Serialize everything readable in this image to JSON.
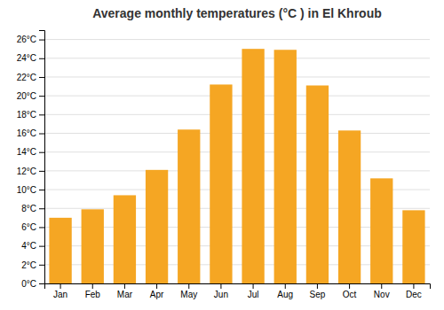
{
  "chart_data": {
    "type": "bar",
    "title": "Average monthly temperatures (°C ) in El Khroub",
    "categories": [
      "Jan",
      "Feb",
      "Mar",
      "Apr",
      "May",
      "Jun",
      "Jul",
      "Aug",
      "Sep",
      "Oct",
      "Nov",
      "Dec"
    ],
    "values": [
      7.0,
      7.9,
      9.4,
      12.1,
      16.4,
      21.2,
      25.0,
      24.9,
      21.1,
      16.3,
      11.2,
      7.8
    ],
    "color": "#F5A623",
    "ylim": [
      0,
      27
    ],
    "yticks": [
      {
        "value": 0,
        "label": "0°C"
      },
      {
        "value": 2,
        "label": "2°C"
      },
      {
        "value": 4,
        "label": "4°C"
      },
      {
        "value": 6,
        "label": "6°C"
      },
      {
        "value": 8,
        "label": "8°C"
      },
      {
        "value": 10,
        "label": "10°C"
      },
      {
        "value": 12,
        "label": "12°C"
      },
      {
        "value": 14,
        "label": "14°C"
      },
      {
        "value": 16,
        "label": "16°C"
      },
      {
        "value": 18,
        "label": "18°C"
      },
      {
        "value": 20,
        "label": "20°C"
      },
      {
        "value": 22,
        "label": "22°C"
      },
      {
        "value": 24,
        "label": "24°C"
      },
      {
        "value": 26,
        "label": "26°C"
      }
    ],
    "grid": true
  }
}
